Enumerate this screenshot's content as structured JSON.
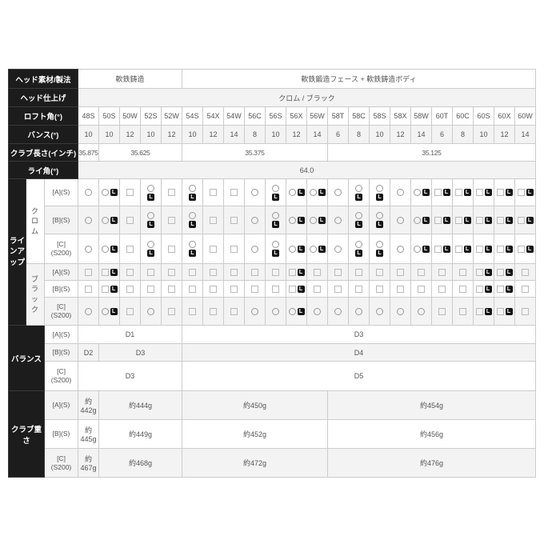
{
  "table": {
    "columns": [
      "48S",
      "50S",
      "50W",
      "52S",
      "52W",
      "54S",
      "54X",
      "54W",
      "56C",
      "56S",
      "56X",
      "56W",
      "58T",
      "58C",
      "58S",
      "58X",
      "58W",
      "60T",
      "60C",
      "60S",
      "60X",
      "60W"
    ],
    "legend": {
      "left_badge": "L"
    },
    "top_rows": [
      {
        "label": "ヘッド素材/製法",
        "cells": [
          {
            "t": "軟鉄鋳造",
            "span": 5
          },
          {
            "t": "軟鉄鍛造フェース + 軟鉄鋳造ボディ",
            "span": 17
          }
        ]
      },
      {
        "label": "ヘッド仕上げ",
        "cells": [
          {
            "t": "クロム / ブラック",
            "span": 22
          }
        ]
      },
      {
        "label": "ロフト角(°)",
        "cells": "@columns"
      },
      {
        "label": "バンス(°)",
        "cells": [
          {
            "t": "10",
            "span": 1
          },
          {
            "t": "10",
            "span": 1
          },
          {
            "t": "12",
            "span": 1
          },
          {
            "t": "10",
            "span": 1
          },
          {
            "t": "12",
            "span": 1
          },
          {
            "t": "10",
            "span": 1
          },
          {
            "t": "12",
            "span": 1
          },
          {
            "t": "14",
            "span": 1
          },
          {
            "t": "8",
            "span": 1
          },
          {
            "t": "10",
            "span": 1
          },
          {
            "t": "12",
            "span": 1
          },
          {
            "t": "14",
            "span": 1
          },
          {
            "t": "6",
            "span": 1
          },
          {
            "t": "8",
            "span": 1
          },
          {
            "t": "10",
            "span": 1
          },
          {
            "t": "12",
            "span": 1
          },
          {
            "t": "14",
            "span": 1
          },
          {
            "t": "6",
            "span": 1
          },
          {
            "t": "8",
            "span": 1
          },
          {
            "t": "10",
            "span": 1
          },
          {
            "t": "12",
            "span": 1
          },
          {
            "t": "14",
            "span": 1
          }
        ]
      },
      {
        "label": "クラブ長さ(インチ)",
        "cells": [
          {
            "t": "35.875",
            "span": 1
          },
          {
            "t": "35.625",
            "span": 4
          },
          {
            "t": "35.375",
            "span": 7
          },
          {
            "t": "35.125",
            "span": 10
          }
        ]
      },
      {
        "label": "ライ角(°)",
        "cells": [
          {
            "t": "64.0",
            "span": 22
          }
        ]
      }
    ],
    "lineup": {
      "section_label": "ライ\nンア\nップ",
      "groups": [
        {
          "finish_label": "ク\nロ\nム",
          "rows": [
            {
              "label": "[A](S)",
              "marks": [
                "o",
                "oL",
                "s",
                "o+L",
                "s",
                "o+L",
                "s",
                "s",
                "o",
                "o+L",
                "oL",
                "oL",
                "o",
                "o+L",
                "o+L",
                "o",
                "oL",
                "sL",
                "sL",
                "sL",
                "sL",
                "sL"
              ]
            },
            {
              "label": "[B](S)",
              "marks": [
                "o",
                "oL",
                "s",
                "o+L",
                "s",
                "o+L",
                "s",
                "s",
                "o",
                "o+L",
                "oL",
                "oL",
                "o",
                "o+L",
                "o+L",
                "o",
                "oL",
                "sL",
                "sL",
                "sL",
                "sL",
                "sL"
              ]
            },
            {
              "label": "[C]\n(S200)",
              "marks": [
                "o",
                "oL",
                "s",
                "o+L",
                "s",
                "o+L",
                "s",
                "s",
                "o",
                "o+L",
                "oL",
                "oL",
                "o",
                "o+L",
                "o+L",
                "o",
                "oL",
                "sL",
                "sL",
                "sL",
                "sL",
                "sL"
              ]
            }
          ]
        },
        {
          "finish_label": "ブ\nラ\nッ\nク",
          "rows": [
            {
              "label": "[A](S)",
              "marks": [
                "s",
                "sL",
                "s",
                "s",
                "s",
                "s",
                "s",
                "s",
                "s",
                "s",
                "sL",
                "s",
                "s",
                "s",
                "s",
                "s",
                "s",
                "s",
                "s",
                "sL",
                "sL",
                "s"
              ]
            },
            {
              "label": "[B](S)",
              "marks": [
                "s",
                "sL",
                "s",
                "s",
                "s",
                "s",
                "s",
                "s",
                "s",
                "s",
                "sL",
                "s",
                "s",
                "s",
                "s",
                "s",
                "s",
                "s",
                "s",
                "sL",
                "sL",
                "s"
              ]
            },
            {
              "label": "[C]\n(S200)",
              "marks": [
                "o",
                "oL",
                "s",
                "o",
                "s",
                "s",
                "s",
                "s",
                "o",
                "o",
                "oL",
                "o",
                "o",
                "o",
                "o",
                "o",
                "o",
                "s",
                "s",
                "sL",
                "sL",
                "s"
              ]
            }
          ]
        }
      ]
    },
    "balance": {
      "section_label": "バランス",
      "rows": [
        {
          "label": "[A](S)",
          "cells": [
            {
              "t": "D1",
              "span": 5
            },
            {
              "t": "D3",
              "span": 17
            }
          ]
        },
        {
          "label": "[B](S)",
          "cells": [
            {
              "t": "D2",
              "span": 1
            },
            {
              "t": "D3",
              "span": 4
            },
            {
              "t": "D4",
              "span": 17
            }
          ]
        },
        {
          "label": "[C]\n(S200)",
          "cells": [
            {
              "t": "D3",
              "span": 5
            },
            {
              "t": "D5",
              "span": 17
            }
          ]
        }
      ]
    },
    "weight": {
      "section_label": "クラブ重さ",
      "rows": [
        {
          "label": "[A](S)",
          "cells": [
            {
              "t": "約442g",
              "span": 1
            },
            {
              "t": "約444g",
              "span": 4
            },
            {
              "t": "約450g",
              "span": 7
            },
            {
              "t": "約454g",
              "span": 10
            }
          ]
        },
        {
          "label": "[B](S)",
          "cells": [
            {
              "t": "約445g",
              "span": 1
            },
            {
              "t": "約449g",
              "span": 4
            },
            {
              "t": "約452g",
              "span": 7
            },
            {
              "t": "約456g",
              "span": 10
            }
          ]
        },
        {
          "label": "[C]\n(S200)",
          "cells": [
            {
              "t": "約467g",
              "span": 1
            },
            {
              "t": "約468g",
              "span": 4
            },
            {
              "t": "約472g",
              "span": 7
            },
            {
              "t": "約476g",
              "span": 10
            }
          ]
        }
      ]
    }
  }
}
